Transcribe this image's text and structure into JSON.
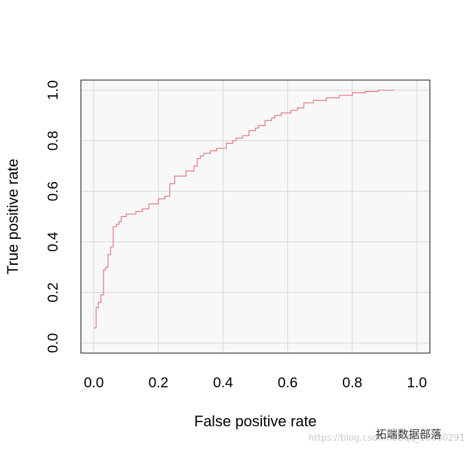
{
  "chart_data": {
    "type": "line",
    "title": "",
    "xlabel": "False positive rate",
    "ylabel": "True positive rate",
    "xlim": [
      -0.04,
      1.04
    ],
    "ylim": [
      -0.04,
      1.04
    ],
    "xticks": [
      "0.0",
      "0.2",
      "0.4",
      "0.6",
      "0.8",
      "1.0"
    ],
    "yticks": [
      "0.0",
      "0.2",
      "0.4",
      "0.6",
      "0.8",
      "1.0"
    ],
    "grid": true,
    "background": "#f8f8f8",
    "line_color": "#e0707c",
    "series": [
      {
        "x": [
          0.0,
          0.007,
          0.007,
          0.014,
          0.014,
          0.022,
          0.022,
          0.03,
          0.03,
          0.037,
          0.037,
          0.044,
          0.044,
          0.052,
          0.052,
          0.06,
          0.06,
          0.07,
          0.07,
          0.078,
          0.078,
          0.085,
          0.085,
          0.1,
          0.1,
          0.13,
          0.13,
          0.15,
          0.15,
          0.17,
          0.17,
          0.2,
          0.2,
          0.22,
          0.22,
          0.235,
          0.235,
          0.25,
          0.25,
          0.285,
          0.285,
          0.31,
          0.31,
          0.32,
          0.32,
          0.33,
          0.33,
          0.34,
          0.34,
          0.36,
          0.36,
          0.38,
          0.38,
          0.41,
          0.41,
          0.43,
          0.43,
          0.44,
          0.44,
          0.46,
          0.46,
          0.48,
          0.48,
          0.5,
          0.5,
          0.51,
          0.51,
          0.53,
          0.53,
          0.55,
          0.55,
          0.56,
          0.56,
          0.58,
          0.58,
          0.61,
          0.61,
          0.63,
          0.63,
          0.65,
          0.65,
          0.68,
          0.68,
          0.72,
          0.72,
          0.76,
          0.76,
          0.8,
          0.8,
          0.84,
          0.84,
          0.88,
          0.88,
          0.93
        ],
        "y": [
          0.06,
          0.06,
          0.14,
          0.14,
          0.16,
          0.16,
          0.19,
          0.19,
          0.29,
          0.29,
          0.3,
          0.3,
          0.35,
          0.35,
          0.38,
          0.38,
          0.46,
          0.46,
          0.47,
          0.47,
          0.48,
          0.48,
          0.5,
          0.5,
          0.51,
          0.51,
          0.52,
          0.52,
          0.53,
          0.53,
          0.55,
          0.55,
          0.57,
          0.57,
          0.58,
          0.58,
          0.63,
          0.63,
          0.66,
          0.66,
          0.68,
          0.68,
          0.7,
          0.7,
          0.73,
          0.73,
          0.74,
          0.74,
          0.75,
          0.75,
          0.76,
          0.76,
          0.77,
          0.77,
          0.79,
          0.79,
          0.8,
          0.8,
          0.81,
          0.81,
          0.82,
          0.82,
          0.84,
          0.84,
          0.85,
          0.85,
          0.86,
          0.86,
          0.88,
          0.88,
          0.89,
          0.89,
          0.9,
          0.9,
          0.91,
          0.91,
          0.92,
          0.92,
          0.93,
          0.93,
          0.95,
          0.95,
          0.96,
          0.96,
          0.97,
          0.97,
          0.98,
          0.98,
          0.99,
          0.99,
          0.995,
          0.995,
          1.0,
          1.0
        ]
      }
    ]
  },
  "watermark": {
    "url_text": "https://blog.csdn.net/qq_19600291",
    "brand_text": "拓端数据部落"
  }
}
